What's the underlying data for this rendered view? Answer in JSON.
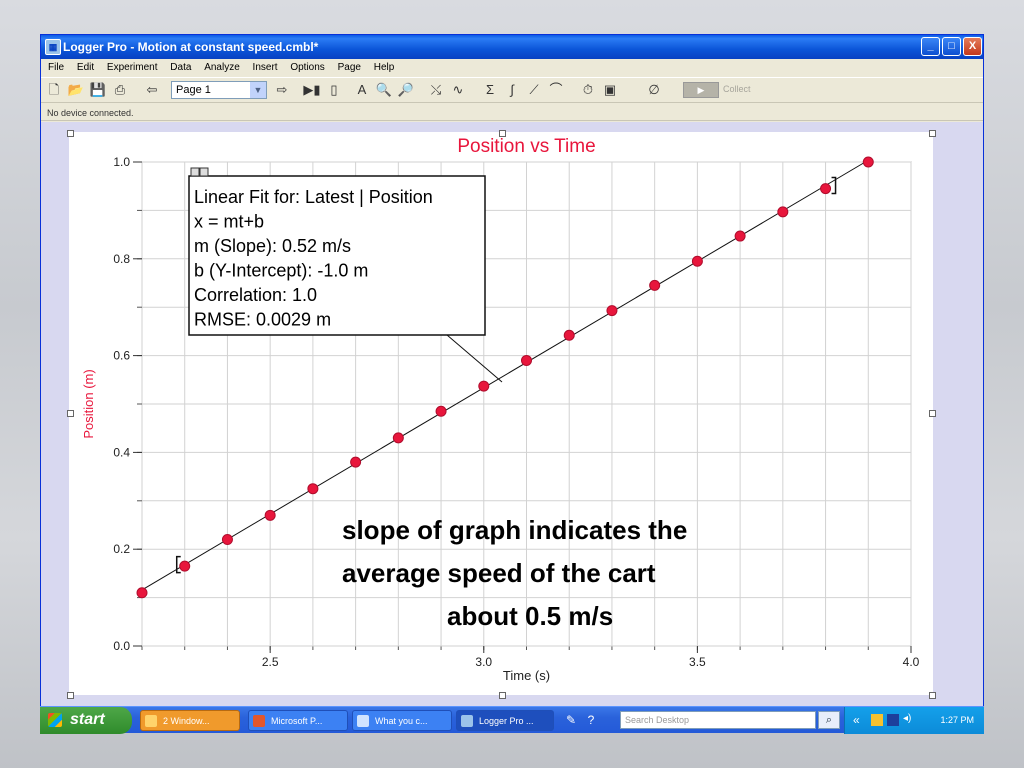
{
  "window": {
    "title": "Logger Pro - Motion at constant speed.cmbl*",
    "minimize_label": "_",
    "maximize_label": "□",
    "close_label": "X"
  },
  "menu": [
    "File",
    "Edit",
    "Experiment",
    "Data",
    "Analyze",
    "Insert",
    "Options",
    "Page",
    "Help"
  ],
  "toolbar": {
    "page_select_value": "Page 1",
    "collect_label": "Collect"
  },
  "status": "No device connected.",
  "chart_data": {
    "type": "scatter",
    "title": "Position vs Time",
    "xlabel": "Time (s)",
    "ylabel": "Position (m)",
    "xlim": [
      2.2,
      4.0
    ],
    "ylim": [
      0.0,
      1.0
    ],
    "x_ticks": [
      "2.5",
      "3.0",
      "3.5",
      "4.0"
    ],
    "y_ticks": [
      "0.0",
      "0.2",
      "0.4",
      "0.6",
      "0.8",
      "1.0"
    ],
    "grid": true,
    "series": [
      {
        "x": [
          2.2,
          2.3,
          2.4,
          2.5,
          2.6,
          2.7,
          2.8,
          2.9,
          3.0,
          3.1,
          3.2,
          3.3,
          3.4,
          3.5,
          3.6,
          3.7,
          3.8,
          3.9
        ],
        "y": [
          0.11,
          0.165,
          0.22,
          0.27,
          0.325,
          0.38,
          0.43,
          0.485,
          0.537,
          0.59,
          0.642,
          0.693,
          0.745,
          0.795,
          0.847,
          0.897,
          0.945,
          1.0
        ]
      }
    ],
    "fit_line": {
      "slope": 0.52,
      "intercept": -1.0
    },
    "point_color": "#e8163c",
    "title_color": "#e8163c"
  },
  "fit_box": {
    "lines": [
      "Linear Fit for: Latest | Position",
      "x = mt+b",
      "m (Slope): 0.52 m/s",
      "b (Y-Intercept): -1.0 m",
      "Correlation: 1.0",
      "RMSE: 0.0029 m"
    ]
  },
  "annotation": {
    "lines": [
      "slope of graph indicates the",
      "average speed of the cart",
      "about  0.5 m/s"
    ]
  },
  "taskbar": {
    "start_label": "start",
    "tasks": [
      "2 Window...",
      "Microsoft P...",
      "What you c...",
      "Logger Pro ..."
    ],
    "search_placeholder": "Search Desktop",
    "clock": "1:27 PM"
  }
}
